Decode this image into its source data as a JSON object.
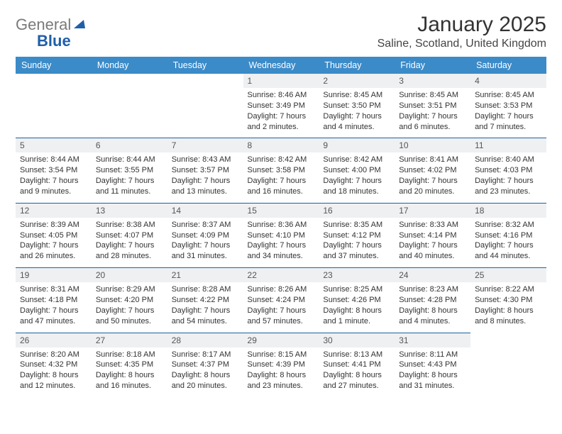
{
  "logo": {
    "part1": "General",
    "part2": "Blue"
  },
  "title": "January 2025",
  "location": "Saline, Scotland, United Kingdom",
  "colors": {
    "header_bg": "#3b8bc9",
    "header_text": "#ffffff",
    "date_bg": "#eef0f2",
    "separator": "#2060a0",
    "page_bg": "#ffffff",
    "text": "#333333",
    "logo_gray": "#7a7a7a",
    "logo_blue": "#1f5fa8"
  },
  "fonts": {
    "title_size_pt": 22,
    "location_size_pt": 12,
    "dow_size_pt": 9,
    "body_size_pt": 8
  },
  "days_of_week": [
    "Sunday",
    "Monday",
    "Tuesday",
    "Wednesday",
    "Thursday",
    "Friday",
    "Saturday"
  ],
  "weeks": [
    [
      {
        "date": "",
        "sunrise": "",
        "sunset": "",
        "daylight": ""
      },
      {
        "date": "",
        "sunrise": "",
        "sunset": "",
        "daylight": ""
      },
      {
        "date": "",
        "sunrise": "",
        "sunset": "",
        "daylight": ""
      },
      {
        "date": "1",
        "sunrise": "Sunrise: 8:46 AM",
        "sunset": "Sunset: 3:49 PM",
        "daylight": "Daylight: 7 hours and 2 minutes."
      },
      {
        "date": "2",
        "sunrise": "Sunrise: 8:45 AM",
        "sunset": "Sunset: 3:50 PM",
        "daylight": "Daylight: 7 hours and 4 minutes."
      },
      {
        "date": "3",
        "sunrise": "Sunrise: 8:45 AM",
        "sunset": "Sunset: 3:51 PM",
        "daylight": "Daylight: 7 hours and 6 minutes."
      },
      {
        "date": "4",
        "sunrise": "Sunrise: 8:45 AM",
        "sunset": "Sunset: 3:53 PM",
        "daylight": "Daylight: 7 hours and 7 minutes."
      }
    ],
    [
      {
        "date": "5",
        "sunrise": "Sunrise: 8:44 AM",
        "sunset": "Sunset: 3:54 PM",
        "daylight": "Daylight: 7 hours and 9 minutes."
      },
      {
        "date": "6",
        "sunrise": "Sunrise: 8:44 AM",
        "sunset": "Sunset: 3:55 PM",
        "daylight": "Daylight: 7 hours and 11 minutes."
      },
      {
        "date": "7",
        "sunrise": "Sunrise: 8:43 AM",
        "sunset": "Sunset: 3:57 PM",
        "daylight": "Daylight: 7 hours and 13 minutes."
      },
      {
        "date": "8",
        "sunrise": "Sunrise: 8:42 AM",
        "sunset": "Sunset: 3:58 PM",
        "daylight": "Daylight: 7 hours and 16 minutes."
      },
      {
        "date": "9",
        "sunrise": "Sunrise: 8:42 AM",
        "sunset": "Sunset: 4:00 PM",
        "daylight": "Daylight: 7 hours and 18 minutes."
      },
      {
        "date": "10",
        "sunrise": "Sunrise: 8:41 AM",
        "sunset": "Sunset: 4:02 PM",
        "daylight": "Daylight: 7 hours and 20 minutes."
      },
      {
        "date": "11",
        "sunrise": "Sunrise: 8:40 AM",
        "sunset": "Sunset: 4:03 PM",
        "daylight": "Daylight: 7 hours and 23 minutes."
      }
    ],
    [
      {
        "date": "12",
        "sunrise": "Sunrise: 8:39 AM",
        "sunset": "Sunset: 4:05 PM",
        "daylight": "Daylight: 7 hours and 26 minutes."
      },
      {
        "date": "13",
        "sunrise": "Sunrise: 8:38 AM",
        "sunset": "Sunset: 4:07 PM",
        "daylight": "Daylight: 7 hours and 28 minutes."
      },
      {
        "date": "14",
        "sunrise": "Sunrise: 8:37 AM",
        "sunset": "Sunset: 4:09 PM",
        "daylight": "Daylight: 7 hours and 31 minutes."
      },
      {
        "date": "15",
        "sunrise": "Sunrise: 8:36 AM",
        "sunset": "Sunset: 4:10 PM",
        "daylight": "Daylight: 7 hours and 34 minutes."
      },
      {
        "date": "16",
        "sunrise": "Sunrise: 8:35 AM",
        "sunset": "Sunset: 4:12 PM",
        "daylight": "Daylight: 7 hours and 37 minutes."
      },
      {
        "date": "17",
        "sunrise": "Sunrise: 8:33 AM",
        "sunset": "Sunset: 4:14 PM",
        "daylight": "Daylight: 7 hours and 40 minutes."
      },
      {
        "date": "18",
        "sunrise": "Sunrise: 8:32 AM",
        "sunset": "Sunset: 4:16 PM",
        "daylight": "Daylight: 7 hours and 44 minutes."
      }
    ],
    [
      {
        "date": "19",
        "sunrise": "Sunrise: 8:31 AM",
        "sunset": "Sunset: 4:18 PM",
        "daylight": "Daylight: 7 hours and 47 minutes."
      },
      {
        "date": "20",
        "sunrise": "Sunrise: 8:29 AM",
        "sunset": "Sunset: 4:20 PM",
        "daylight": "Daylight: 7 hours and 50 minutes."
      },
      {
        "date": "21",
        "sunrise": "Sunrise: 8:28 AM",
        "sunset": "Sunset: 4:22 PM",
        "daylight": "Daylight: 7 hours and 54 minutes."
      },
      {
        "date": "22",
        "sunrise": "Sunrise: 8:26 AM",
        "sunset": "Sunset: 4:24 PM",
        "daylight": "Daylight: 7 hours and 57 minutes."
      },
      {
        "date": "23",
        "sunrise": "Sunrise: 8:25 AM",
        "sunset": "Sunset: 4:26 PM",
        "daylight": "Daylight: 8 hours and 1 minute."
      },
      {
        "date": "24",
        "sunrise": "Sunrise: 8:23 AM",
        "sunset": "Sunset: 4:28 PM",
        "daylight": "Daylight: 8 hours and 4 minutes."
      },
      {
        "date": "25",
        "sunrise": "Sunrise: 8:22 AM",
        "sunset": "Sunset: 4:30 PM",
        "daylight": "Daylight: 8 hours and 8 minutes."
      }
    ],
    [
      {
        "date": "26",
        "sunrise": "Sunrise: 8:20 AM",
        "sunset": "Sunset: 4:32 PM",
        "daylight": "Daylight: 8 hours and 12 minutes."
      },
      {
        "date": "27",
        "sunrise": "Sunrise: 8:18 AM",
        "sunset": "Sunset: 4:35 PM",
        "daylight": "Daylight: 8 hours and 16 minutes."
      },
      {
        "date": "28",
        "sunrise": "Sunrise: 8:17 AM",
        "sunset": "Sunset: 4:37 PM",
        "daylight": "Daylight: 8 hours and 20 minutes."
      },
      {
        "date": "29",
        "sunrise": "Sunrise: 8:15 AM",
        "sunset": "Sunset: 4:39 PM",
        "daylight": "Daylight: 8 hours and 23 minutes."
      },
      {
        "date": "30",
        "sunrise": "Sunrise: 8:13 AM",
        "sunset": "Sunset: 4:41 PM",
        "daylight": "Daylight: 8 hours and 27 minutes."
      },
      {
        "date": "31",
        "sunrise": "Sunrise: 8:11 AM",
        "sunset": "Sunset: 4:43 PM",
        "daylight": "Daylight: 8 hours and 31 minutes."
      },
      {
        "date": "",
        "sunrise": "",
        "sunset": "",
        "daylight": ""
      }
    ]
  ]
}
